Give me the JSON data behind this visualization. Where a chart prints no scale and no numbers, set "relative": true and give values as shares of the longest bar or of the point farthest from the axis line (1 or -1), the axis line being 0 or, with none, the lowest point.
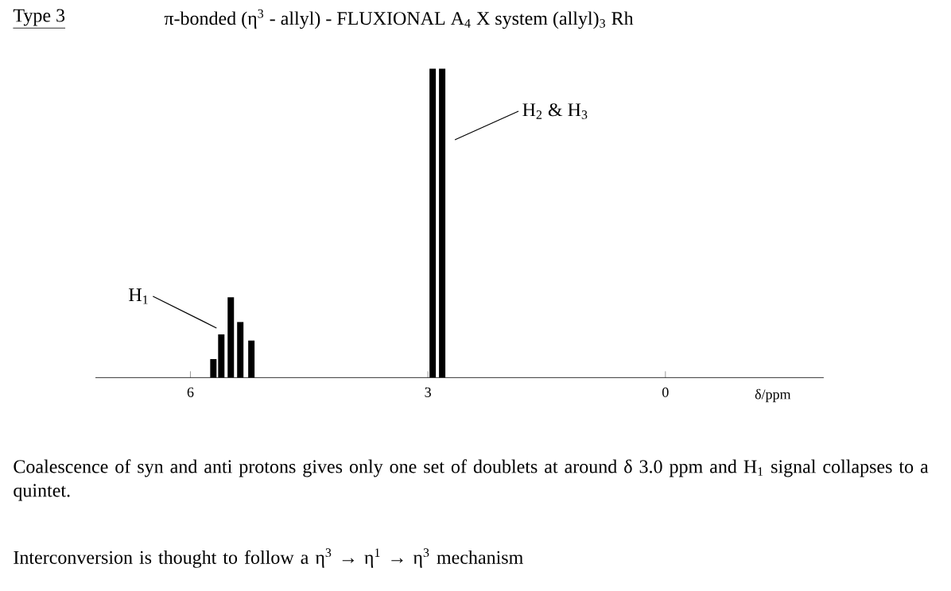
{
  "chart_data": {
    "type": "bar",
    "title": "Type 3",
    "subtitle": "π-bonded (η$^{3}$ - allyl) - FLUXIONAL A$_{4}$ X system (allyl)$_{3}$ Rh",
    "xlabel": "δ/ppm",
    "relative": true,
    "color": "#000000",
    "x": [
      5.71,
      5.61,
      5.49,
      5.37,
      5.23,
      2.94,
      2.82
    ],
    "values": [
      0.06,
      0.14,
      0.26,
      0.18,
      0.12,
      1,
      1
    ],
    "xlim": [
      7.2,
      -2
    ],
    "xticks": [
      6,
      3,
      0
    ],
    "annotations": [
      {
        "text": "H$_{1}$",
        "x": 5.61,
        "y": 0.14
      },
      {
        "text": "H$_{2}$ & H$_{3}$",
        "x": 2.74,
        "y": 0.77
      },
      "Coalescence of syn and anti protons gives only one set of doublets at around δ 3.0 ppm and H$_{1}$ signal collapses to a quintet.",
      "Interconversion is thought to follow a η$^{3}$ → η$^{1}$ → η$^{3}$  mechanism"
    ]
  }
}
